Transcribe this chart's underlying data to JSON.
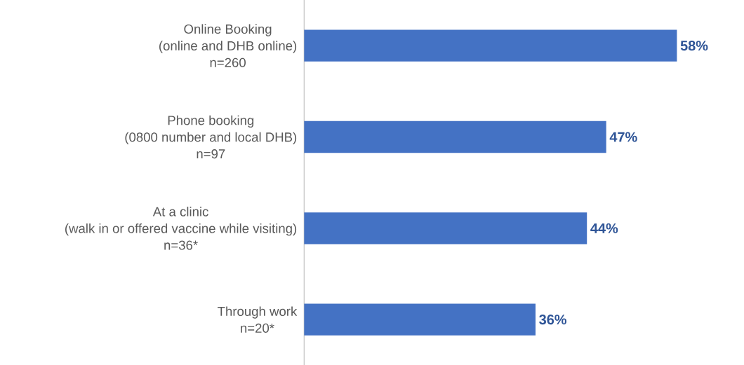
{
  "chart_data": {
    "type": "bar",
    "orientation": "horizontal",
    "categories": [
      "Online Booking\n(online and DHB online)\nn=260",
      "Phone booking\n(0800 number and local DHB)\nn=97",
      "At a clinic\n(walk in or offered vaccine while visiting)\nn=36*",
      "Through work\nn=20*"
    ],
    "values": [
      58,
      47,
      44,
      36
    ],
    "color": "#4472c4",
    "value_labels": [
      "58%",
      "47%",
      "44%",
      "36%"
    ]
  }
}
